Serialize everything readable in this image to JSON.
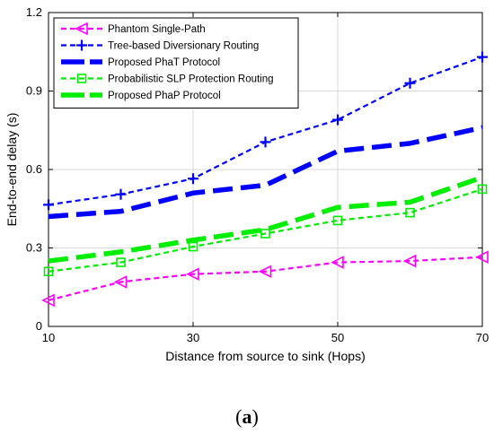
{
  "chart_data": {
    "type": "line",
    "xlabel": "Distance from source to sink (Hops)",
    "ylabel": "End-to-end delay (s)",
    "xlim": [
      10,
      70
    ],
    "ylim": [
      0,
      1.2
    ],
    "xticks": [
      10,
      30,
      50,
      70
    ],
    "yticks": [
      0,
      0.3,
      0.6,
      0.9,
      1.2
    ],
    "xtick_labels": [
      "10",
      "30",
      "50",
      "70"
    ],
    "ytick_labels": [
      "0",
      "0.3",
      "0.6",
      "0.9",
      "1.2"
    ],
    "grid": true,
    "legend_position": "top-left",
    "x": [
      10,
      20,
      30,
      40,
      50,
      60,
      70
    ],
    "series": [
      {
        "name": "Phantom Single-Path",
        "values": [
          0.1,
          0.17,
          0.2,
          0.21,
          0.245,
          0.25,
          0.265
        ],
        "color": "#ff00ff",
        "style": "dashed",
        "marker": "triangle-left"
      },
      {
        "name": "Tree-based Diversionary Routing",
        "values": [
          0.465,
          0.505,
          0.565,
          0.705,
          0.79,
          0.93,
          1.03
        ],
        "color": "#0000ff",
        "style": "dashed",
        "marker": "plus"
      },
      {
        "name": "Proposed  PhaT Protocol",
        "values": [
          0.42,
          0.44,
          0.51,
          0.54,
          0.67,
          0.7,
          0.76
        ],
        "color": "#0000ff",
        "style": "thick-dashed",
        "marker": "none"
      },
      {
        "name": "Probabilistic SLP Protection Routing",
        "values": [
          0.21,
          0.245,
          0.305,
          0.355,
          0.405,
          0.435,
          0.525
        ],
        "color": "#00ee00",
        "style": "dashed",
        "marker": "square"
      },
      {
        "name": "Proposed  PhaP Protocol",
        "values": [
          0.25,
          0.285,
          0.33,
          0.37,
          0.455,
          0.475,
          0.57
        ],
        "color": "#00ee00",
        "style": "thick-dashed",
        "marker": "none"
      }
    ]
  },
  "caption": {
    "open": "(",
    "label": "a",
    "close": ")"
  }
}
